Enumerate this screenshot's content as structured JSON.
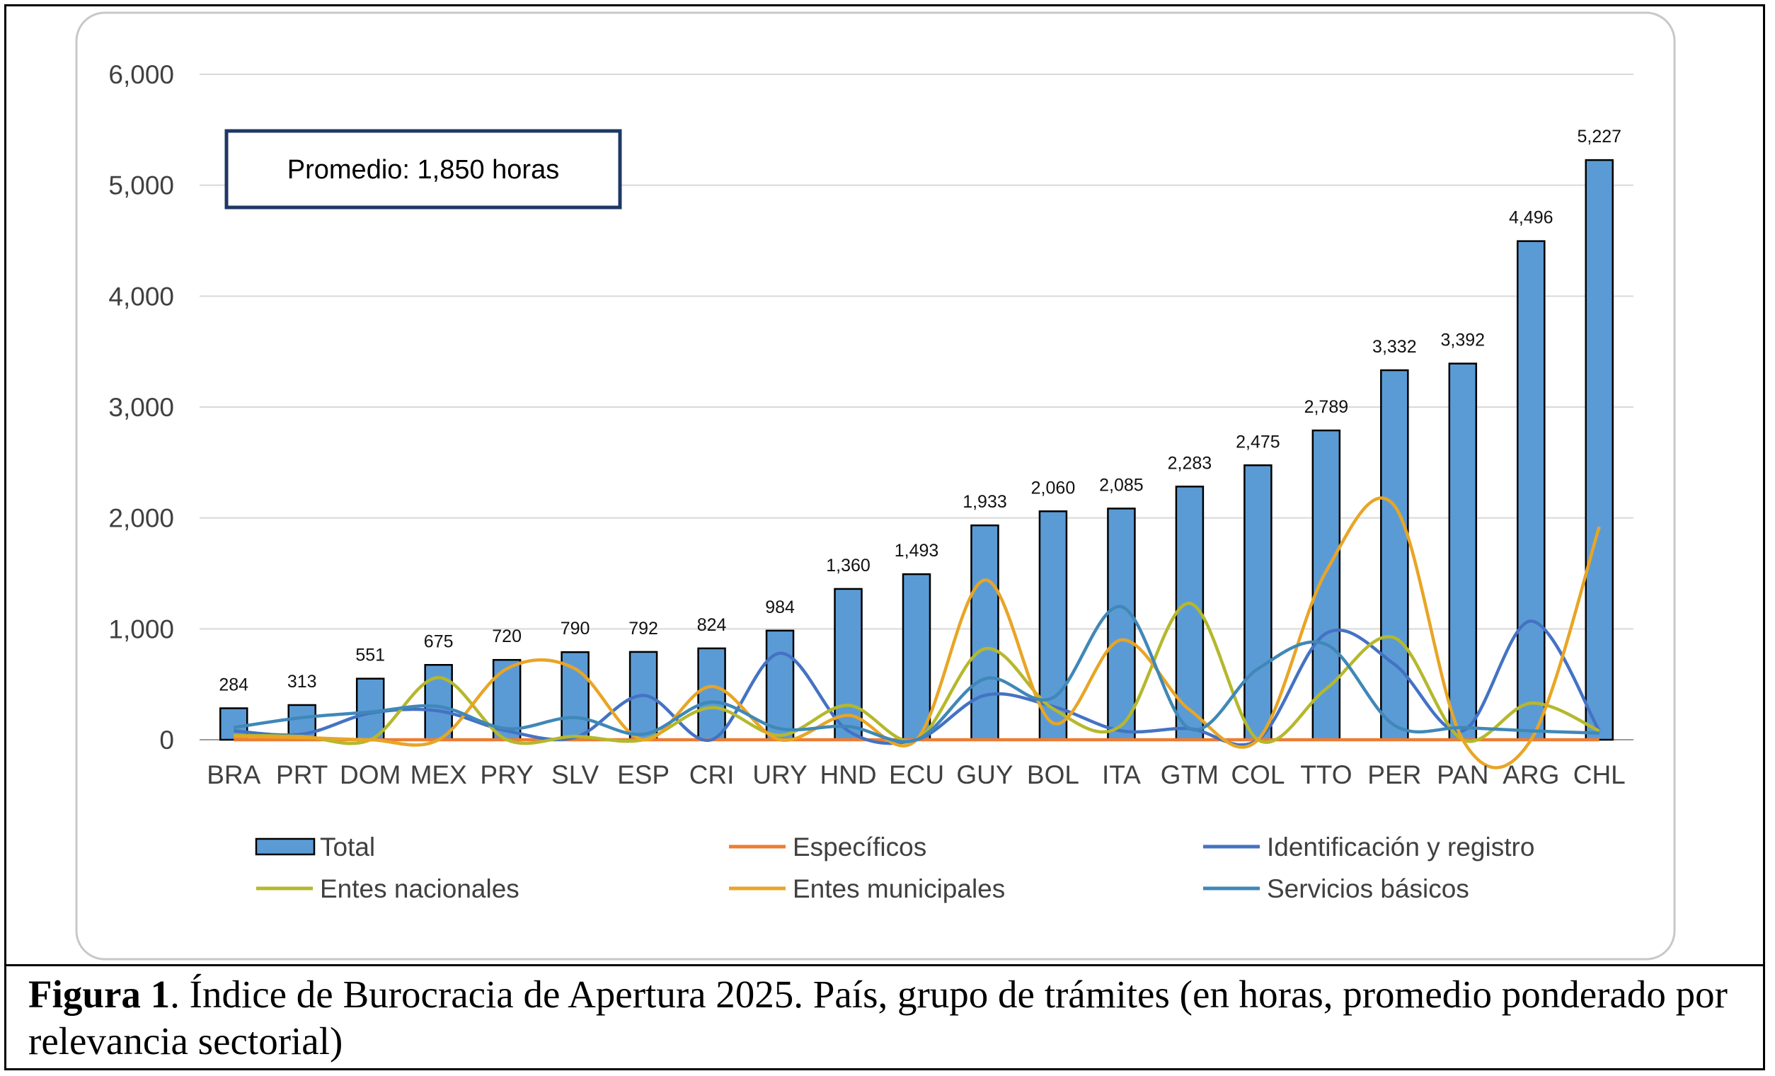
{
  "chart_data": {
    "type": "bar",
    "annotation": "Promedio: 1,850 horas",
    "categories": [
      "BRA",
      "PRT",
      "DOM",
      "MEX",
      "PRY",
      "SLV",
      "ESP",
      "CRI",
      "URY",
      "HND",
      "ECU",
      "GUY",
      "BOL",
      "ITA",
      "GTM",
      "COL",
      "TTO",
      "PER",
      "PAN",
      "ARG",
      "CHL"
    ],
    "ylim": [
      0,
      6000
    ],
    "yticks": [
      0,
      1000,
      2000,
      3000,
      4000,
      5000,
      6000
    ],
    "ytick_labels": [
      "0",
      "1,000",
      "2,000",
      "3,000",
      "4,000",
      "5,000",
      "6,000"
    ],
    "xlabel": "",
    "ylabel": "",
    "grid": true,
    "legend_position": "bottom",
    "bar_series": {
      "name": "Total",
      "color": "#5b9bd5",
      "values": [
        284,
        313,
        551,
        675,
        720,
        790,
        792,
        824,
        984,
        1360,
        1493,
        1933,
        2060,
        2085,
        2283,
        2475,
        2789,
        3332,
        3392,
        4496,
        5227
      ],
      "labels": [
        "284",
        "313",
        "551",
        "675",
        "720",
        "790",
        "792",
        "824",
        "984",
        "1,360",
        "1,493",
        "1,933",
        "2,060",
        "2,085",
        "2,283",
        "2,475",
        "2,789",
        "3,332",
        "3,392",
        "4,496",
        "5,227"
      ]
    },
    "line_series": [
      {
        "name": "Específicos",
        "color": "#ed7d31",
        "values": [
          0,
          0,
          0,
          0,
          0,
          0,
          0,
          0,
          0,
          0,
          0,
          0,
          0,
          0,
          0,
          0,
          0,
          0,
          0,
          0,
          0
        ]
      },
      {
        "name": "Identificación y registro",
        "color": "#4472c4",
        "values": [
          80,
          50,
          240,
          260,
          80,
          20,
          400,
          0,
          780,
          80,
          0,
          400,
          300,
          80,
          100,
          0,
          960,
          680,
          80,
          1070,
          80
        ]
      },
      {
        "name": "Entes nacionales",
        "color": "#b5b82c",
        "values": [
          40,
          30,
          0,
          560,
          0,
          30,
          0,
          290,
          40,
          310,
          0,
          820,
          280,
          130,
          1230,
          0,
          460,
          920,
          0,
          330,
          80
        ]
      },
      {
        "name": "Entes municipales",
        "color": "#e8a525",
        "values": [
          30,
          20,
          0,
          0,
          640,
          640,
          0,
          480,
          0,
          220,
          0,
          1440,
          150,
          900,
          270,
          0,
          1520,
          2110,
          0,
          0,
          1920
        ]
      },
      {
        "name": "Servicios básicos",
        "color": "#3f88b8",
        "values": [
          110,
          200,
          250,
          300,
          100,
          200,
          50,
          340,
          100,
          120,
          0,
          550,
          380,
          1200,
          100,
          640,
          860,
          130,
          110,
          80,
          60
        ]
      }
    ]
  },
  "caption": {
    "label": "Figura 1",
    "text": ". Índice de Burocracia de Apertura 2025. País, grupo de trámites (en horas, promedio ponderado por relevancia sectorial)"
  }
}
